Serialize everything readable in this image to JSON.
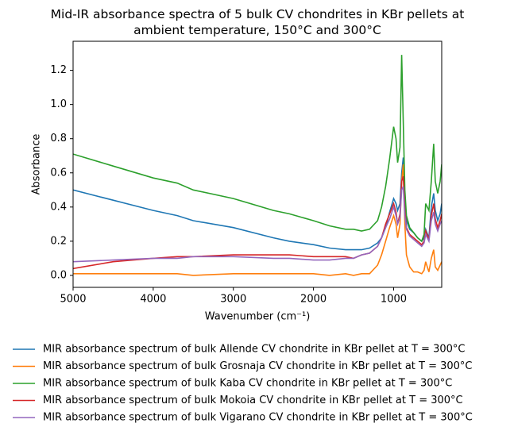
{
  "chart_data": {
    "type": "line",
    "title": "Mid-IR absorbance spectra of 5 bulk CV chondrites in KBr pellets at ambient temperature, 150°C and 300°C",
    "xlabel": "Wavenumber (cm⁻¹)",
    "ylabel": "Absorbance",
    "xlim": [
      5000,
      400
    ],
    "ylim": [
      -0.07,
      1.37
    ],
    "xticks": [
      5000,
      4000,
      3000,
      2000,
      1000
    ],
    "yticks": [
      {
        "value": 0,
        "label": "0.0"
      },
      0.2,
      0.4,
      0.6,
      0.8,
      {
        "value": 1,
        "label": "1.0"
      },
      1.2
    ],
    "grid": false,
    "legend": "below",
    "x": [
      5000,
      4500,
      4000,
      3700,
      3500,
      3000,
      2500,
      2300,
      2000,
      1800,
      1600,
      1500,
      1400,
      1300,
      1200,
      1150,
      1100,
      1050,
      1000,
      970,
      950,
      920,
      900,
      880,
      860,
      840,
      800,
      750,
      700,
      650,
      620,
      600,
      560,
      530,
      500,
      480,
      450,
      420,
      400
    ],
    "series": [
      {
        "name": "MIR absorbance spectrum of bulk Allende CV chondrite in KBr pellet at T = 300°C",
        "color": "#1f77b4",
        "values": [
          0.5,
          0.44,
          0.38,
          0.35,
          0.32,
          0.28,
          0.22,
          0.2,
          0.18,
          0.16,
          0.15,
          0.15,
          0.15,
          0.16,
          0.19,
          0.22,
          0.28,
          0.37,
          0.45,
          0.42,
          0.38,
          0.42,
          0.6,
          0.69,
          0.45,
          0.32,
          0.27,
          0.25,
          0.22,
          0.2,
          0.22,
          0.27,
          0.22,
          0.4,
          0.48,
          0.38,
          0.32,
          0.36,
          0.42
        ]
      },
      {
        "name": "MIR absorbance spectrum of bulk Grosnaja CV chondrite in KBr pellet at T = 300°C",
        "color": "#ff7f0e",
        "values": [
          0.01,
          0.01,
          0.01,
          0.01,
          0.0,
          0.01,
          0.01,
          0.01,
          0.01,
          0.0,
          0.01,
          0.0,
          0.01,
          0.01,
          0.06,
          0.12,
          0.2,
          0.28,
          0.35,
          0.3,
          0.22,
          0.3,
          0.55,
          0.65,
          0.3,
          0.12,
          0.05,
          0.02,
          0.02,
          0.01,
          0.03,
          0.08,
          0.02,
          0.1,
          0.15,
          0.05,
          0.03,
          0.06,
          0.08
        ]
      },
      {
        "name": "MIR absorbance spectrum of bulk Kaba CV chondrite in KBr pellet at T = 300°C",
        "color": "#2ca02c",
        "values": [
          0.71,
          0.64,
          0.57,
          0.54,
          0.5,
          0.45,
          0.38,
          0.36,
          0.32,
          0.29,
          0.27,
          0.27,
          0.26,
          0.27,
          0.32,
          0.4,
          0.52,
          0.68,
          0.87,
          0.8,
          0.66,
          0.75,
          1.29,
          0.9,
          0.5,
          0.35,
          0.28,
          0.25,
          0.22,
          0.2,
          0.24,
          0.42,
          0.38,
          0.55,
          0.77,
          0.55,
          0.48,
          0.55,
          0.65
        ]
      },
      {
        "name": "MIR absorbance spectrum of bulk Mokoia CV chondrite in KBr pellet at T = 300°C",
        "color": "#d62728",
        "values": [
          0.04,
          0.08,
          0.1,
          0.11,
          0.11,
          0.12,
          0.12,
          0.12,
          0.11,
          0.11,
          0.11,
          0.1,
          0.12,
          0.13,
          0.17,
          0.22,
          0.3,
          0.36,
          0.42,
          0.37,
          0.3,
          0.36,
          0.55,
          0.58,
          0.38,
          0.28,
          0.24,
          0.22,
          0.2,
          0.18,
          0.2,
          0.26,
          0.21,
          0.35,
          0.42,
          0.33,
          0.28,
          0.32,
          0.36
        ]
      },
      {
        "name": "MIR absorbance spectrum of bulk Vigarano CV chondrite in KBr pellet at T = 300°C",
        "color": "#9467bd",
        "values": [
          0.08,
          0.09,
          0.1,
          0.1,
          0.11,
          0.11,
          0.1,
          0.1,
          0.09,
          0.09,
          0.1,
          0.1,
          0.12,
          0.13,
          0.17,
          0.22,
          0.28,
          0.33,
          0.4,
          0.35,
          0.3,
          0.34,
          0.5,
          0.52,
          0.35,
          0.27,
          0.23,
          0.21,
          0.19,
          0.17,
          0.19,
          0.24,
          0.2,
          0.32,
          0.37,
          0.3,
          0.26,
          0.3,
          0.32
        ]
      }
    ]
  }
}
